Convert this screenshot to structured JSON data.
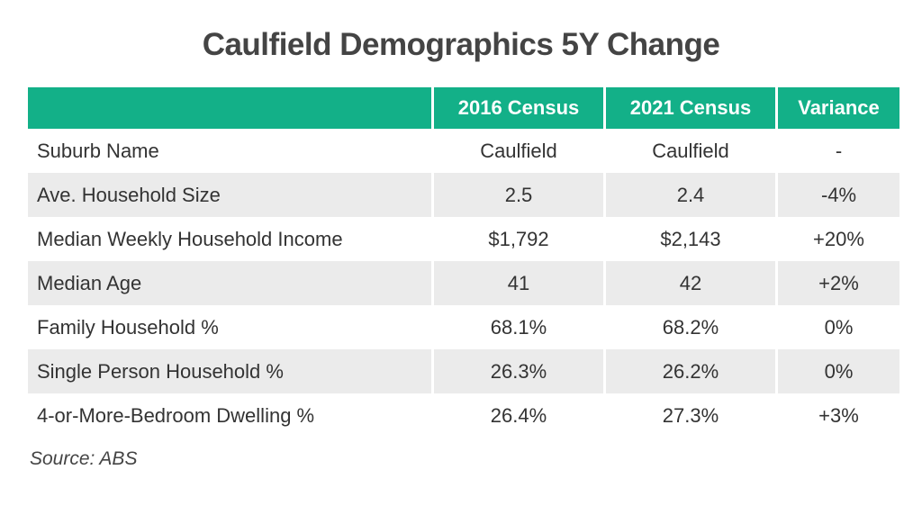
{
  "title": "Caulfield Demographics 5Y Change",
  "table": {
    "header": [
      "2016 Census",
      "2021 Census",
      "Variance"
    ],
    "rows": [
      [
        "Suburb Name",
        "Caulfield",
        "Caulfield",
        "-"
      ],
      [
        "Ave. Household Size",
        "2.5",
        "2.4",
        "-4%"
      ],
      [
        "Median Weekly Household Income",
        "$1,792",
        "$2,143",
        "+20%"
      ],
      [
        "Median Age",
        "41",
        "42",
        "+2%"
      ],
      [
        "Family Household %",
        "68.1%",
        "68.2%",
        "0%"
      ],
      [
        "Single Person Household %",
        "26.3%",
        "26.2%",
        "0%"
      ],
      [
        "4-or-More-Bedroom Dwelling %",
        "26.4%",
        "27.3%",
        "+3%"
      ]
    ]
  },
  "source": "Source: ABS"
}
